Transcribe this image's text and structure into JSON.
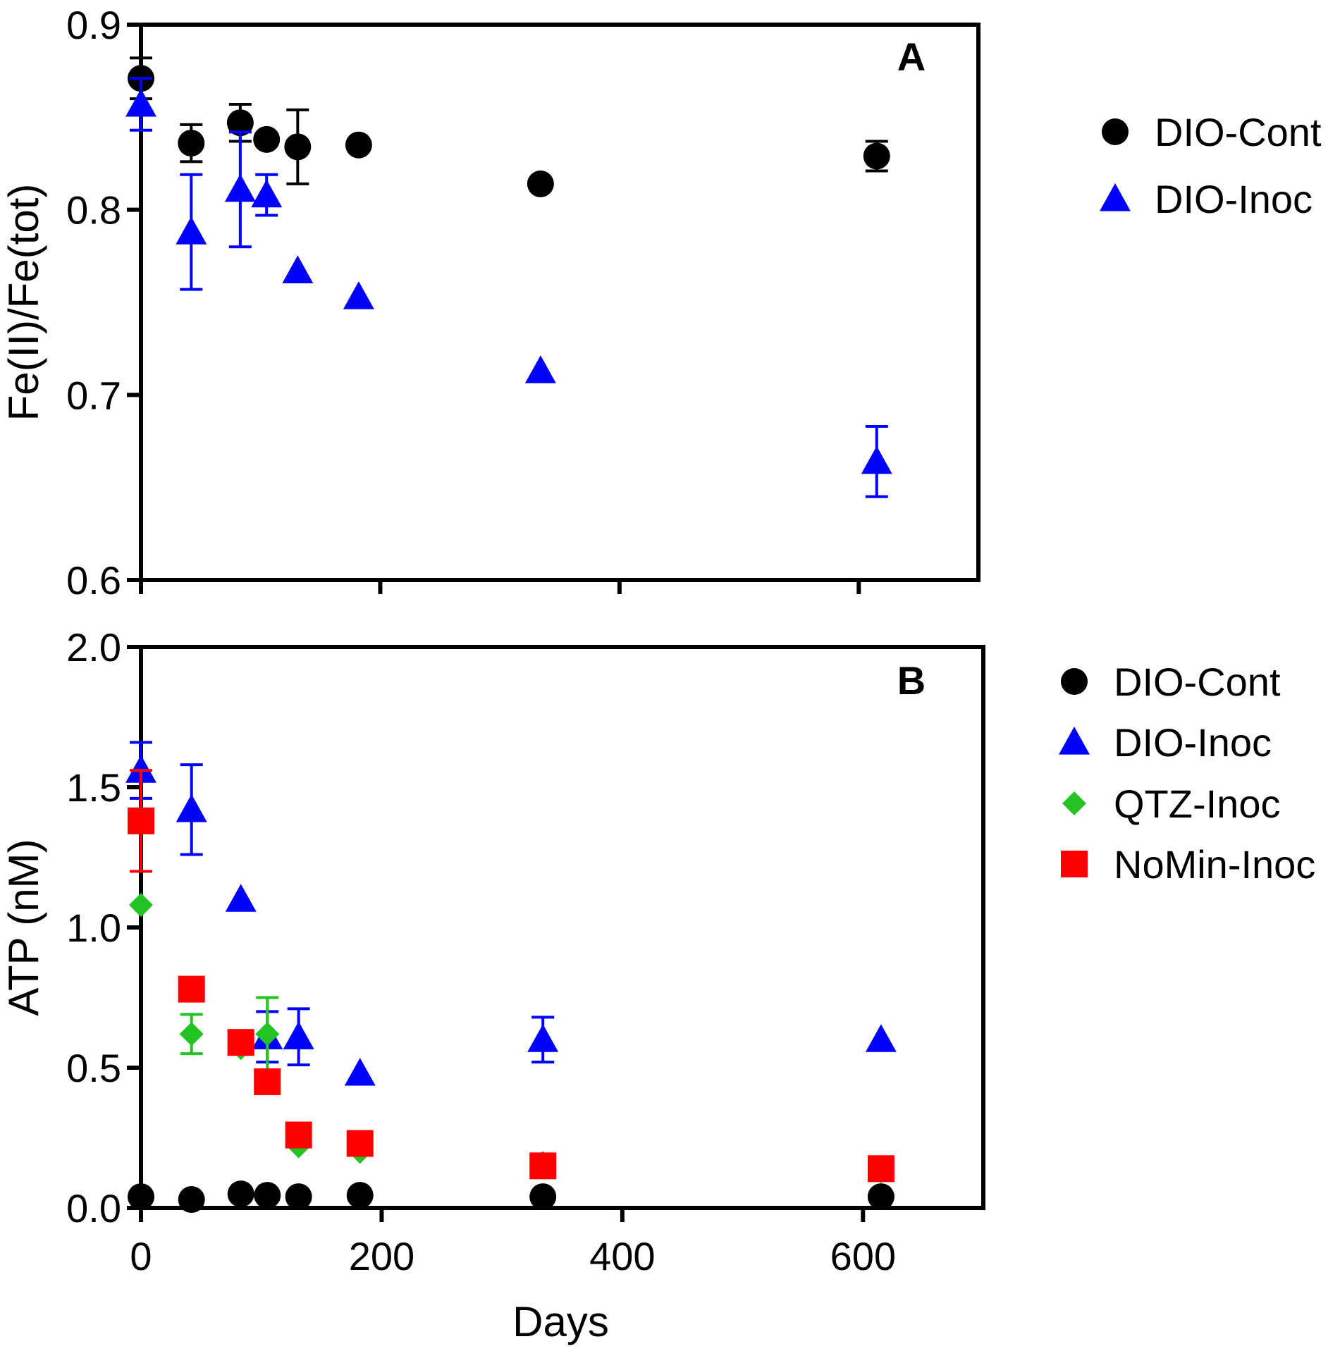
{
  "chart_data": [
    {
      "type": "scatter",
      "panel_label": "A",
      "xlabel": "",
      "ylabel": "Fe(II)/Fe(tot)",
      "xlim": [
        0,
        700
      ],
      "ylim": [
        0.6,
        0.9
      ],
      "x_ticks": [
        0,
        200,
        400,
        600
      ],
      "x_tick_labels_shown": false,
      "y_ticks": [
        0.6,
        0.7,
        0.8,
        0.9
      ],
      "y_tick_labels": [
        "0.6",
        "0.7",
        "0.8",
        "0.9"
      ],
      "legend_position": "right",
      "series": [
        {
          "name": "DIO-Cont",
          "marker": "circle",
          "color": "#000000",
          "points": [
            {
              "x": 0,
              "y": 0.871,
              "err": 0.011
            },
            {
              "x": 42,
              "y": 0.836,
              "err": 0.01
            },
            {
              "x": 83,
              "y": 0.847,
              "err": 0.01
            },
            {
              "x": 105,
              "y": 0.838,
              "err": null
            },
            {
              "x": 131,
              "y": 0.834,
              "err": 0.02
            },
            {
              "x": 182,
              "y": 0.835,
              "err": null
            },
            {
              "x": 334,
              "y": 0.814,
              "err": null
            },
            {
              "x": 615,
              "y": 0.829,
              "err": 0.008
            }
          ]
        },
        {
          "name": "DIO-Inoc",
          "marker": "triangle",
          "color": "#0000ff",
          "points": [
            {
              "x": 0,
              "y": 0.857,
              "err": 0.014
            },
            {
              "x": 42,
              "y": 0.788,
              "err": 0.031
            },
            {
              "x": 83,
              "y": 0.811,
              "err": 0.031
            },
            {
              "x": 105,
              "y": 0.808,
              "err": 0.011
            },
            {
              "x": 131,
              "y": 0.767,
              "err": null
            },
            {
              "x": 182,
              "y": 0.753,
              "err": null
            },
            {
              "x": 334,
              "y": 0.713,
              "err": null
            },
            {
              "x": 615,
              "y": 0.664,
              "err": 0.019
            }
          ]
        }
      ]
    },
    {
      "type": "scatter",
      "panel_label": "B",
      "xlabel": "Days",
      "ylabel": "ATP (nM)",
      "xlim": [
        0,
        700
      ],
      "ylim": [
        0.0,
        2.0
      ],
      "x_ticks": [
        0,
        200,
        400,
        600
      ],
      "x_tick_labels": [
        "0",
        "200",
        "400",
        "600"
      ],
      "y_ticks": [
        0.0,
        0.5,
        1.0,
        1.5,
        2.0
      ],
      "y_tick_labels": [
        "0.0",
        "0.5",
        "1.0",
        "1.5",
        "2.0"
      ],
      "legend_position": "right",
      "series": [
        {
          "name": "DIO-Cont",
          "marker": "circle",
          "color": "#000000",
          "points": [
            {
              "x": 0,
              "y": 0.04,
              "err": null
            },
            {
              "x": 42,
              "y": 0.03,
              "err": null
            },
            {
              "x": 83,
              "y": 0.05,
              "err": null
            },
            {
              "x": 105,
              "y": 0.045,
              "err": null
            },
            {
              "x": 131,
              "y": 0.04,
              "err": null
            },
            {
              "x": 182,
              "y": 0.045,
              "err": null
            },
            {
              "x": 334,
              "y": 0.04,
              "err": null
            },
            {
              "x": 615,
              "y": 0.04,
              "err": null
            }
          ]
        },
        {
          "name": "DIO-Inoc",
          "marker": "triangle",
          "color": "#0000ff",
          "points": [
            {
              "x": 0,
              "y": 1.56,
              "err": 0.1
            },
            {
              "x": 42,
              "y": 1.42,
              "err": 0.16
            },
            {
              "x": 83,
              "y": 1.1,
              "err": null
            },
            {
              "x": 105,
              "y": 0.61,
              "err": 0.09
            },
            {
              "x": 131,
              "y": 0.61,
              "err": 0.1
            },
            {
              "x": 182,
              "y": 0.48,
              "err": null
            },
            {
              "x": 334,
              "y": 0.6,
              "err": 0.08
            },
            {
              "x": 615,
              "y": 0.6,
              "err": null
            }
          ]
        },
        {
          "name": "QTZ-Inoc",
          "marker": "diamond",
          "color": "#22c322",
          "points": [
            {
              "x": 0,
              "y": 1.08,
              "err": null
            },
            {
              "x": 42,
              "y": 0.62,
              "err": 0.07
            },
            {
              "x": 83,
              "y": 0.57,
              "err": null
            },
            {
              "x": 105,
              "y": 0.62,
              "err": 0.13
            },
            {
              "x": 131,
              "y": 0.22,
              "err": null
            },
            {
              "x": 182,
              "y": 0.2,
              "err": null
            },
            {
              "x": 334,
              "y": 0.16,
              "err": null
            },
            {
              "x": 615,
              "y": 0.13,
              "err": null
            }
          ]
        },
        {
          "name": "NoMin-Inoc",
          "marker": "square",
          "color": "#ff0000",
          "points": [
            {
              "x": 0,
              "y": 1.38,
              "err": 0.18
            },
            {
              "x": 42,
              "y": 0.78,
              "err": null
            },
            {
              "x": 83,
              "y": 0.59,
              "err": null
            },
            {
              "x": 105,
              "y": 0.45,
              "err": null
            },
            {
              "x": 131,
              "y": 0.26,
              "err": null
            },
            {
              "x": 182,
              "y": 0.23,
              "err": null
            },
            {
              "x": 334,
              "y": 0.15,
              "err": null
            },
            {
              "x": 615,
              "y": 0.14,
              "err": null
            }
          ]
        }
      ]
    }
  ]
}
